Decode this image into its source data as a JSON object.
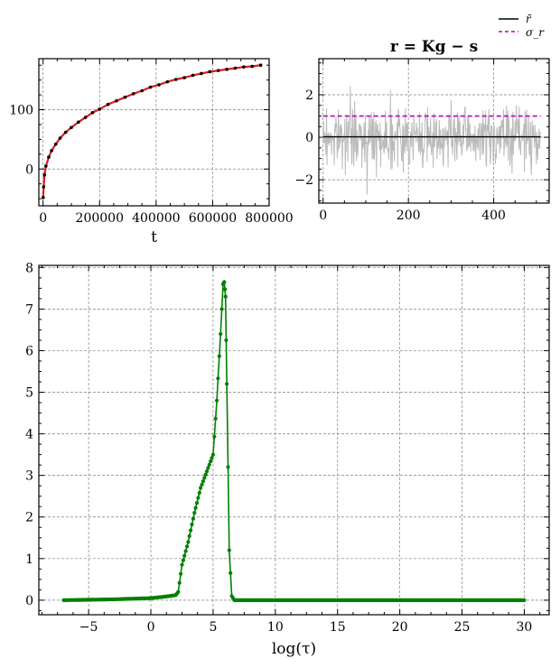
{
  "chart_data": [
    {
      "type": "scatter",
      "title": "",
      "xlabel": "t",
      "ylabel": "",
      "xlim": [
        -15000,
        800000
      ],
      "ylim": [
        -62,
        186
      ],
      "xticks": [
        0,
        200000,
        400000,
        600000,
        800000
      ],
      "xtick_labels": [
        "0",
        "200000",
        "400000",
        "600000",
        "800000"
      ],
      "yticks": [
        0,
        100
      ],
      "ytick_labels": [
        "0",
        "100"
      ],
      "grid": true,
      "series": [
        {
          "name": "",
          "style": "points",
          "color": "#000000",
          "x": [
            500,
            2000,
            5000,
            10000,
            20000,
            30000,
            45000,
            60000,
            80000,
            100000,
            125000,
            150000,
            175000,
            200000,
            230000,
            260000,
            290000,
            320000,
            350000,
            380000,
            410000,
            440000,
            470000,
            500000,
            530000,
            560000,
            590000,
            620000,
            650000,
            680000,
            710000,
            740000,
            770000
          ],
          "y": [
            -48,
            -30,
            -10,
            5,
            20,
            31,
            42,
            52,
            62,
            70,
            79,
            87,
            95,
            101,
            109,
            115,
            121,
            127,
            132,
            138,
            142,
            147,
            151,
            154,
            158,
            161,
            164,
            166,
            168,
            170,
            172,
            173,
            175
          ]
        },
        {
          "name": "",
          "style": "line",
          "color": "#e41a1c",
          "x": [
            500,
            2000,
            5000,
            10000,
            20000,
            30000,
            45000,
            60000,
            80000,
            100000,
            125000,
            150000,
            175000,
            200000,
            230000,
            260000,
            290000,
            320000,
            350000,
            380000,
            410000,
            440000,
            470000,
            500000,
            530000,
            560000,
            590000,
            620000,
            650000,
            680000,
            710000,
            740000,
            770000
          ],
          "y": [
            -48,
            -30,
            -10,
            5,
            20,
            31,
            42,
            52,
            62,
            70,
            79,
            87,
            95,
            101,
            109,
            115,
            121,
            127,
            132,
            138,
            142,
            147,
            151,
            154,
            158,
            161,
            164,
            166,
            168,
            170,
            172,
            173,
            175
          ]
        }
      ]
    },
    {
      "type": "line",
      "title": "r = Kg − s",
      "xlabel": "",
      "ylabel": "",
      "xlim": [
        -10,
        530
      ],
      "ylim": [
        -3.1,
        3.7
      ],
      "xticks": [
        0,
        200,
        400
      ],
      "xtick_labels": [
        "0",
        "200",
        "400"
      ],
      "yticks": [
        -2,
        0,
        2
      ],
      "ytick_labels": [
        "−2",
        "0",
        "2"
      ],
      "grid": true,
      "legend": {
        "placement": "top-right, outside plot",
        "entries": [
          "r̄",
          "σ_r"
        ]
      },
      "series": [
        {
          "name": "r̄",
          "style": "solid",
          "color": "#000000",
          "x": [
            0,
            510
          ],
          "y": [
            0.02,
            0.02
          ]
        },
        {
          "name": "σ_r",
          "style": "dashed",
          "color": "#bf00bf",
          "x": [
            0,
            510
          ],
          "y": [
            1.0,
            1.0
          ]
        },
        {
          "name": "",
          "style": "residual",
          "color": "#bbbbbb",
          "n": 510,
          "amplitude": 1.0
        }
      ]
    },
    {
      "type": "line",
      "title": "",
      "xlabel": "log(τ)",
      "ylabel": "",
      "xlim": [
        -9,
        32
      ],
      "ylim": [
        -0.35,
        8.05
      ],
      "xticks": [
        -5,
        0,
        5,
        10,
        15,
        20,
        25,
        30
      ],
      "xtick_labels": [
        "−5",
        "0",
        "5",
        "10",
        "15",
        "20",
        "25",
        "30"
      ],
      "yticks": [
        0,
        1,
        2,
        3,
        4,
        5,
        6,
        7,
        8
      ],
      "ytick_labels": [
        "0",
        "1",
        "2",
        "3",
        "4",
        "5",
        "6",
        "7",
        "8"
      ],
      "grid": true,
      "series": [
        {
          "name": "",
          "color": "#008000",
          "x": [
            -7,
            -3,
            0,
            1,
            2,
            2.2,
            2.5,
            3,
            3.5,
            4,
            4.5,
            5,
            5.3,
            5.6,
            5.8,
            5.9,
            6.0,
            6.1,
            6.3,
            6.5,
            6.7,
            30
          ],
          "y": [
            0.0,
            0.02,
            0.05,
            0.08,
            0.12,
            0.2,
            0.85,
            1.4,
            2.1,
            2.7,
            3.1,
            3.5,
            4.8,
            6.4,
            7.6,
            7.65,
            7.3,
            5.2,
            1.2,
            0.1,
            0.0,
            0.0
          ]
        }
      ]
    }
  ]
}
